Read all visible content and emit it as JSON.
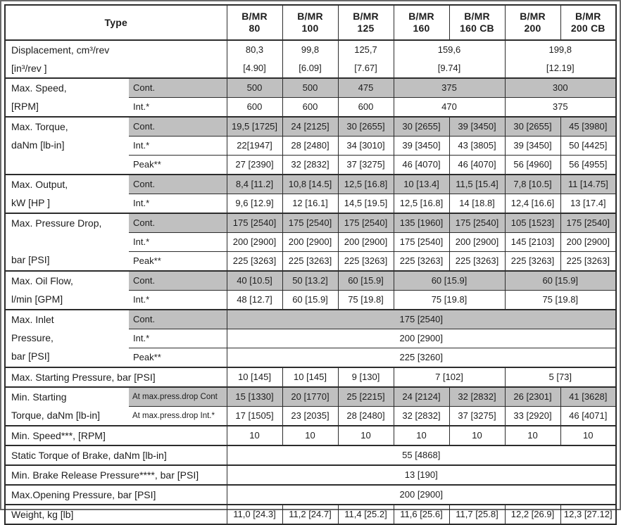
{
  "colors": {
    "row_shade": "#c0c0c0",
    "border": "#2c2c2c",
    "frame": "#6a6a6a"
  },
  "subs": {
    "cont": "Cont.",
    "int": "Int.*",
    "peak": "Peak**"
  },
  "header": {
    "type": "Type",
    "models": [
      "B/MR\n80",
      "B/MR\n100",
      "B/MR\n125",
      "B/MR\n160",
      "B/MR\n160 CB",
      "B/MR\n200",
      "B/MR\n200 CB"
    ]
  },
  "displacement": {
    "label": "Displacement, cm³/rev\n[in³/rev ]",
    "values": [
      "80,3\n[4.90]",
      "99,8\n[6.09]",
      "125,7\n[7.67]",
      "159,6\n[9.74]",
      "199,8\n[12.19]"
    ]
  },
  "speed": {
    "label": "Max. Speed,\n[RPM]",
    "cont": [
      "500",
      "500",
      "475",
      "375",
      "300"
    ],
    "int": [
      "600",
      "600",
      "600",
      "470",
      "375"
    ]
  },
  "torque": {
    "label": "Max. Torque,\ndaNm [lb-in]",
    "cont": [
      "19,5 [1725]",
      "24 [2125]",
      "30 [2655]",
      "30 [2655]",
      "39 [3450]",
      "30 [2655]",
      "45 [3980]"
    ],
    "int": [
      "22[1947]",
      "28 [2480]",
      "34 [3010]",
      "39 [3450]",
      "43 [3805]",
      "39 [3450]",
      "50 [4425]"
    ],
    "peak": [
      "27 [2390]",
      "32 [2832]",
      "37 [3275]",
      "46 [4070]",
      "46 [4070]",
      "56 [4960]",
      "56 [4955]"
    ]
  },
  "output": {
    "label": "Max. Output,\nkW [HP ]",
    "cont": [
      "8,4 [11.2]",
      "10,8 [14.5]",
      "12,5 [16.8]",
      "10 [13.4]",
      "11,5 [15.4]",
      "7,8 [10.5]",
      "11 [14.75]"
    ],
    "int": [
      "9,6 [12.9]",
      "12 [16.1]",
      "14,5 [19.5]",
      "12,5 [16.8]",
      "14 [18.8]",
      "12,4 [16.6]",
      "13 [17.4]"
    ]
  },
  "pressure_drop": {
    "label": "Max. Pressure Drop,\n\nbar [PSI]",
    "cont": [
      "175 [2540]",
      "175 [2540]",
      "175 [2540]",
      "135 [1960]",
      "175 [2540]",
      "105 [1523]",
      "175 [2540]"
    ],
    "int": [
      "200 [2900]",
      "200 [2900]",
      "200 [2900]",
      "175 [2540]",
      "200 [2900]",
      "145 [2103]",
      "200 [2900]"
    ],
    "peak": [
      "225 [3263]",
      "225 [3263]",
      "225 [3263]",
      "225 [3263]",
      "225 [3263]",
      "225 [3263]",
      "225 [3263]"
    ]
  },
  "oil_flow": {
    "label": "Max. Oil Flow,\nl/min [GPM]",
    "cont": [
      "40 [10.5]",
      "50 [13.2]",
      "60 [15.9]",
      "60 [15.9]",
      "60 [15.9]"
    ],
    "int": [
      "48 [12.7]",
      "60 [15.9]",
      "75 [19.8]",
      "75 [19.8]",
      "75 [19.8]"
    ]
  },
  "inlet_pressure": {
    "label": "Max. Inlet\nPressure,\nbar [PSI]",
    "cont": "175 [2540]",
    "int": "200 [2900]",
    "peak": "225 [3260]"
  },
  "starting_pressure": {
    "label": "Max. Starting Pressure, bar [PSI]",
    "values": [
      "10 [145]",
      "10 [145]",
      "9 [130]",
      "7 [102]",
      "5 [73]"
    ]
  },
  "starting_torque": {
    "label": "Min. Starting\nTorque, daNm [lb-in]",
    "cont_label": "At max.press.drop Cont",
    "int_label": "At max.press.drop Int.*",
    "cont": [
      "15 [1330]",
      "20 [1770]",
      "25 [2215]",
      "24 [2124]",
      "32 [2832]",
      "26 [2301]",
      "41 [3628]"
    ],
    "int": [
      "17 [1505]",
      "23 [2035]",
      "28 [2480]",
      "32 [2832]",
      "37 [3275]",
      "33 [2920]",
      "46 [4071]"
    ]
  },
  "min_speed": {
    "label": "Min. Speed***, [RPM]",
    "values": [
      "10",
      "10",
      "10",
      "10",
      "10",
      "10",
      "10"
    ]
  },
  "brake_torque": {
    "label": "Static Torque of Brake, daNm [lb-in]",
    "value": "55 [4868]"
  },
  "brake_release": {
    "label": "Min. Brake Release Pressure****, bar [PSI]",
    "value": "13 [190]"
  },
  "opening_pressure": {
    "label": "Max.Opening Pressure, bar [PSI]",
    "value": "200 [2900]"
  },
  "weight": {
    "label": "Weight, kg [lb]",
    "values": [
      "11,0 [24.3]",
      "11,2 [24.7]",
      "11,4 [25.2]",
      "11,6 [25.6]",
      "11,7 [25.8]",
      "12,2 [26.9]",
      "12,3 [27.12]"
    ]
  }
}
